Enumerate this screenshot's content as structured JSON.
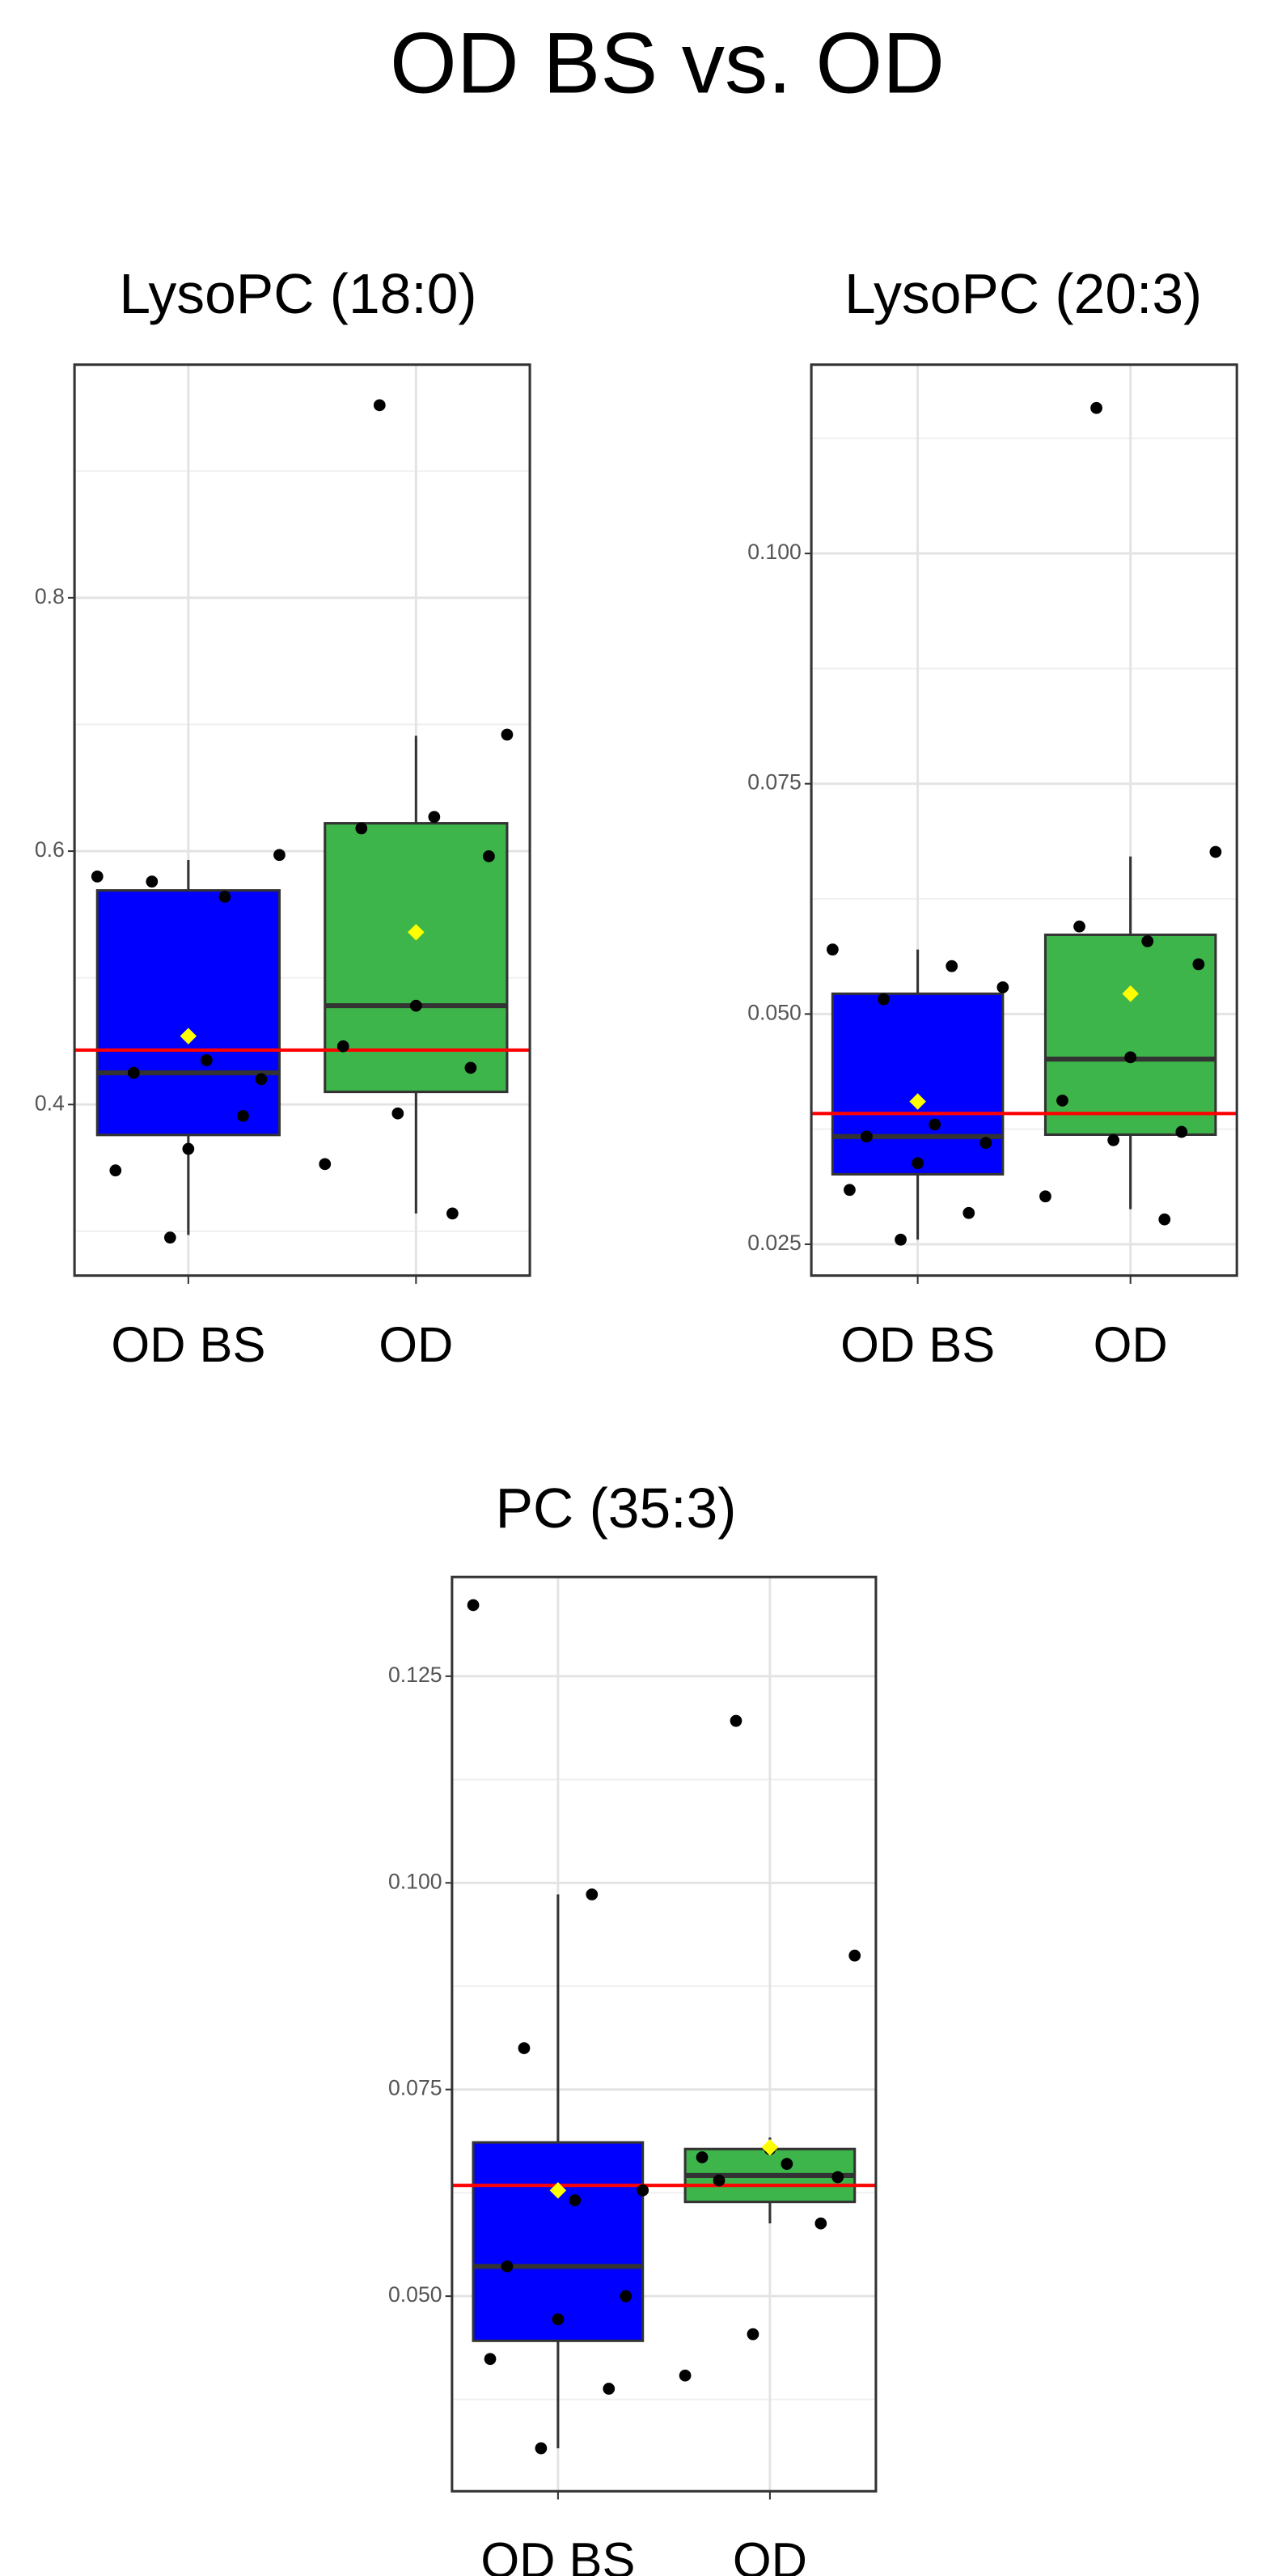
{
  "title": "OD BS vs. OD",
  "chart_data": [
    {
      "type": "box",
      "title": "LysoPC (18:0)",
      "categories": [
        "OD BS",
        "OD"
      ],
      "ylim": [
        0.265,
        0.984
      ],
      "yticks": [
        0.4,
        0.6,
        0.8
      ],
      "minor_yticks": [
        0.3,
        0.5,
        0.7,
        0.9
      ],
      "grid": true,
      "reference_line": 0.443,
      "reference_line_color": "#ff0000",
      "mean_color": "#ffff00",
      "point_color": "#000000",
      "boxes": [
        {
          "color": "#0000ff",
          "min": 0.297,
          "q1": 0.376,
          "median": 0.425,
          "q3": 0.569,
          "max": 0.593,
          "mean": 0.454,
          "points": [
            0.58,
            0.564,
            0.576,
            0.597,
            0.435,
            0.425,
            0.42,
            0.365,
            0.348,
            0.391,
            0.295
          ]
        },
        {
          "color": "#3db54a",
          "min": 0.314,
          "q1": 0.41,
          "median": 0.478,
          "q3": 0.622,
          "max": 0.691,
          "mean": 0.536,
          "points": [
            0.952,
            0.692,
            0.627,
            0.618,
            0.596,
            0.478,
            0.446,
            0.429,
            0.393,
            0.353,
            0.314
          ]
        }
      ]
    },
    {
      "type": "box",
      "title": "LysoPC (20:3)",
      "categories": [
        "OD BS",
        "OD"
      ],
      "ylim": [
        0.0216,
        0.1205
      ],
      "yticks": [
        0.025,
        {
          "value": 0.05,
          "label": "0.050"
        },
        0.075,
        {
          "value": 0.1,
          "label": "0.100"
        }
      ],
      "minor_yticks": [
        0.0375,
        0.0625,
        0.0875,
        0.1125
      ],
      "grid": true,
      "reference_line": 0.0392,
      "reference_line_color": "#ff0000",
      "mean_color": "#ffff00",
      "point_color": "#000000",
      "boxes": [
        {
          "color": "#0000ff",
          "min": 0.0255,
          "q1": 0.0326,
          "median": 0.0367,
          "q3": 0.0522,
          "max": 0.057,
          "mean": 0.0405,
          "points": [
            0.057,
            0.0552,
            0.0516,
            0.0529,
            0.038,
            0.0367,
            0.036,
            0.0338,
            0.0309,
            0.0284,
            0.0255
          ]
        },
        {
          "color": "#3db54a",
          "min": 0.0288,
          "q1": 0.0369,
          "median": 0.0451,
          "q3": 0.0586,
          "max": 0.0671,
          "mean": 0.0522,
          "points": [
            0.1158,
            0.0676,
            0.0579,
            0.0595,
            0.0554,
            0.0453,
            0.0406,
            0.0372,
            0.0363,
            0.0302,
            0.0277
          ]
        }
      ]
    },
    {
      "type": "box",
      "title": "PC (35:3)",
      "categories": [
        "OD BS",
        "OD"
      ],
      "ylim": [
        0.0264,
        0.137
      ],
      "yticks": [
        {
          "value": 0.05,
          "label": "0.050"
        },
        0.075,
        {
          "value": 0.1,
          "label": "0.100"
        },
        0.125
      ],
      "minor_yticks": [
        0.0375,
        0.0625,
        0.0875,
        0.1125
      ],
      "grid": true,
      "reference_line": 0.0634,
      "reference_line_color": "#ff0000",
      "mean_color": "#ffff00",
      "point_color": "#000000",
      "boxes": [
        {
          "color": "#0000ff",
          "min": 0.0316,
          "q1": 0.0446,
          "median": 0.0536,
          "q3": 0.0686,
          "max": 0.0986,
          "mean": 0.0628,
          "points": [
            0.1336,
            0.0986,
            0.08,
            0.0628,
            0.0616,
            0.0536,
            0.05,
            0.0472,
            0.0424,
            0.0388,
            0.0316
          ]
        },
        {
          "color": "#3db54a",
          "min": 0.0588,
          "q1": 0.0614,
          "median": 0.0646,
          "q3": 0.0678,
          "max": 0.0692,
          "mean": 0.068,
          "points": [
            0.1196,
            0.0912,
            0.066,
            0.064,
            0.0644,
            0.0678,
            0.0668,
            0.0588,
            0.0454,
            0.0404
          ]
        }
      ]
    }
  ]
}
